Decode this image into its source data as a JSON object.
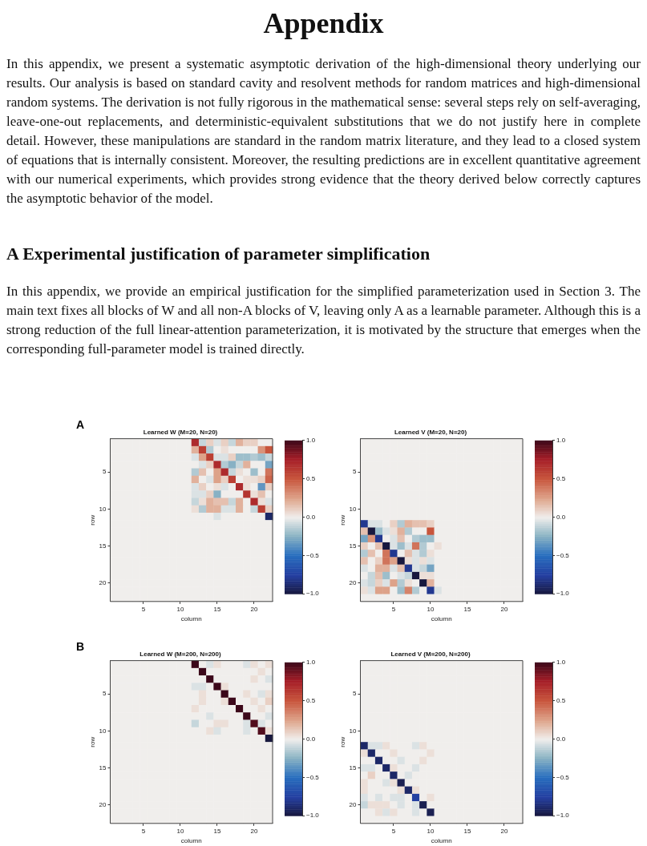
{
  "chart_data": [
    {
      "type": "other",
      "title": "Appendix",
      "subtitle": "A Experimental justification of parameter simplification",
      "annotations": [
        "In this appendix, we present a systematic asymptotic derivation of the high-dimensional theory underlying our results. Our analysis is based on standard cavity and resolvent methods for random matrices and high-dimensional random systems. The derivation is not fully rigorous in the mathematical sense: several steps rely on self-averaging, leave-one-out replacements, and deterministic-equivalent substitutions that we do not justify here in complete detail. However, these manipulations are standard in the random matrix literature, and they lead to a closed system of equations that is internally consistent. Moreover, the resulting predictions are in excellent quantitative agreement with our numerical experiments, which provides strong evidence that the theory derived below correctly captures the asymptotic behavior of the model.",
        "In this appendix, we provide an empirical justification for the simplified parameterization used in Section 3. The main text fixes all blocks of W and all non-A blocks of V, leaving only A as a learnable parameter. Although this is a strong reduction of the full linear-attention parameterization, it is motivated by the structure that emerges when the corresponding full-parameter model is trained directly."
      ]
    },
    {
      "type": "heatmap",
      "title": "Learned W (M=20, N=20)",
      "xlabel": "column",
      "ylabel": "row",
      "annotations": [
        "A"
      ],
      "categories": [
        null,
        null,
        null,
        null,
        "5",
        null,
        null,
        null,
        null,
        "10",
        null,
        null,
        null,
        null,
        "15",
        null,
        null,
        null,
        null,
        "20",
        null,
        null
      ],
      "y_categories": [
        null,
        null,
        null,
        null,
        "5",
        null,
        null,
        null,
        null,
        "10",
        null,
        null,
        null,
        null,
        "15",
        null,
        null,
        null,
        null,
        "20",
        null,
        null
      ],
      "clim": [
        -1,
        1
      ],
      "cticks": [
        {
          "value": 1,
          "label": "1.0"
        },
        {
          "value": 0.5,
          "label": "0.5"
        },
        {
          "value": 0,
          "label": "0.0"
        },
        {
          "value": -0.5,
          "label": "−0.5"
        },
        {
          "value": -1,
          "label": "−1.0"
        }
      ],
      "cells": [
        [
          0,
          0,
          0,
          0,
          0,
          0,
          0,
          0,
          0,
          0,
          0,
          0.7,
          -0.1,
          0.1,
          -0.05,
          0.1,
          -0.1,
          0.2,
          0.1,
          0.1,
          0,
          0
        ],
        [
          0,
          0,
          0,
          0,
          0,
          0,
          0,
          0,
          0,
          0,
          0,
          0.2,
          0.6,
          -0.15,
          0,
          0.05,
          0,
          0,
          0,
          0,
          0.3,
          0.5
        ],
        [
          0,
          0,
          0,
          0,
          0,
          0,
          0,
          0,
          0,
          0,
          0,
          -0.05,
          0.25,
          0.6,
          -0.05,
          -0.05,
          0.1,
          -0.2,
          -0.2,
          -0.15,
          -0.2,
          -0.1
        ],
        [
          0,
          0,
          0,
          0,
          0,
          0,
          0,
          0,
          0,
          0,
          0,
          0,
          -0.05,
          0.1,
          0.7,
          -0.15,
          -0.25,
          -0.1,
          0.2,
          0,
          0,
          -0.3
        ],
        [
          0,
          0,
          0,
          0,
          0,
          0,
          0,
          0,
          0,
          0,
          0,
          -0.15,
          0.15,
          0,
          0.25,
          0.7,
          -0.1,
          0.05,
          0,
          -0.2,
          0,
          0.4
        ],
        [
          0,
          0,
          0,
          0,
          0,
          0,
          0,
          0,
          0,
          0,
          0,
          0.2,
          0,
          -0.05,
          0.25,
          0.1,
          0.6,
          0,
          0.05,
          0.05,
          0.1,
          0.45
        ],
        [
          0,
          0,
          0,
          0,
          0,
          0,
          0,
          0,
          0,
          0,
          0,
          -0.05,
          0.1,
          0,
          0.05,
          -0.05,
          0,
          0.7,
          0.05,
          0,
          -0.35,
          0.1
        ],
        [
          0,
          0,
          0,
          0,
          0,
          0,
          0,
          0,
          0,
          0,
          0,
          -0.05,
          -0.05,
          0.1,
          -0.25,
          0,
          0,
          0,
          0.65,
          0.05,
          0.15,
          0
        ],
        [
          0,
          0,
          0,
          0,
          0,
          0,
          0,
          0,
          0,
          0,
          0,
          -0.1,
          0.05,
          0.2,
          0.15,
          0.15,
          -0.1,
          0.2,
          0,
          0.7,
          0.05,
          -0.05
        ],
        [
          0,
          0,
          0,
          0,
          0,
          0,
          0,
          0,
          0,
          0,
          0,
          0.05,
          -0.15,
          0.2,
          0.2,
          -0.05,
          -0.05,
          0.2,
          0,
          -0.1,
          0.6,
          0.1
        ],
        [
          0,
          0,
          0,
          0,
          0,
          0,
          0,
          0,
          0,
          0,
          0,
          0,
          0,
          0,
          -0.05,
          0,
          0,
          0,
          0,
          0,
          0,
          -0.9
        ],
        [
          0,
          0,
          0,
          0,
          0,
          0,
          0,
          0,
          0,
          0,
          0,
          0,
          0,
          0,
          0,
          0,
          0,
          0,
          0,
          0,
          0,
          0
        ],
        [
          0,
          0,
          0,
          0,
          0,
          0,
          0,
          0,
          0,
          0,
          0,
          0,
          0,
          0,
          0,
          0,
          0,
          0,
          0,
          0,
          0,
          0
        ],
        [
          0,
          0,
          0,
          0,
          0,
          0,
          0,
          0,
          0,
          0,
          0,
          0,
          0,
          0,
          0,
          0,
          0,
          0,
          0,
          0,
          0,
          0
        ],
        [
          0,
          0,
          0,
          0,
          0,
          0,
          0,
          0,
          0,
          0,
          0,
          0,
          0,
          0,
          0,
          0,
          0,
          0,
          0,
          0,
          0,
          0
        ],
        [
          0,
          0,
          0,
          0,
          0,
          0,
          0,
          0,
          0,
          0,
          0,
          0,
          0,
          0,
          0,
          0,
          0,
          0,
          0,
          0,
          0,
          0
        ],
        [
          0,
          0,
          0,
          0,
          0,
          0,
          0,
          0,
          0,
          0,
          0,
          0,
          0,
          0,
          0,
          0,
          0,
          0,
          0,
          0,
          0,
          0
        ],
        [
          0,
          0,
          0,
          0,
          0,
          0,
          0,
          0,
          0,
          0,
          0,
          0,
          0,
          0,
          0,
          0,
          0,
          0,
          0,
          0,
          0,
          0
        ],
        [
          0,
          0,
          0,
          0,
          0,
          0,
          0,
          0,
          0,
          0,
          0,
          0,
          0,
          0,
          0,
          0,
          0,
          0,
          0,
          0,
          0,
          0
        ],
        [
          0,
          0,
          0,
          0,
          0,
          0,
          0,
          0,
          0,
          0,
          0,
          0,
          0,
          0,
          0,
          0,
          0,
          0,
          0,
          0,
          0,
          0
        ],
        [
          0,
          0,
          0,
          0,
          0,
          0,
          0,
          0,
          0,
          0,
          0,
          0,
          0,
          0,
          0,
          0,
          0,
          0,
          0,
          0,
          0,
          0
        ],
        [
          0,
          0,
          0,
          0,
          0,
          0,
          0,
          0,
          0,
          0,
          0,
          0,
          0,
          0,
          0,
          0,
          0,
          0,
          0,
          0,
          0,
          0
        ]
      ]
    },
    {
      "type": "heatmap",
      "title": "Learned V (M=20, N=20)",
      "xlabel": "column",
      "ylabel": "row",
      "categories": [
        null,
        null,
        null,
        null,
        "5",
        null,
        null,
        null,
        null,
        "10",
        null,
        null,
        null,
        null,
        "15",
        null,
        null,
        null,
        null,
        "20",
        null,
        null
      ],
      "y_categories": [
        null,
        null,
        null,
        null,
        "5",
        null,
        null,
        null,
        null,
        "10",
        null,
        null,
        null,
        null,
        "15",
        null,
        null,
        null,
        null,
        "20",
        null,
        null
      ],
      "clim": [
        -1,
        1
      ],
      "cticks": [
        {
          "value": 1,
          "label": "1.0"
        },
        {
          "value": 0.5,
          "label": "0.5"
        },
        {
          "value": 0,
          "label": "0.0"
        },
        {
          "value": -0.5,
          "label": "−0.5"
        },
        {
          "value": -1,
          "label": "−1.0"
        }
      ],
      "cells": [
        [
          0,
          0,
          0,
          0,
          0,
          0,
          0,
          0,
          0,
          0,
          0,
          0,
          0,
          0,
          0,
          0,
          0,
          0,
          0,
          0,
          0,
          0
        ],
        [
          0,
          0,
          0,
          0,
          0,
          0,
          0,
          0,
          0,
          0,
          0,
          0,
          0,
          0,
          0,
          0,
          0,
          0,
          0,
          0,
          0,
          0
        ],
        [
          0,
          0,
          0,
          0,
          0,
          0,
          0,
          0,
          0,
          0,
          0,
          0,
          0,
          0,
          0,
          0,
          0,
          0,
          0,
          0,
          0,
          0
        ],
        [
          0,
          0,
          0,
          0,
          0,
          0,
          0,
          0,
          0,
          0,
          0,
          0,
          0,
          0,
          0,
          0,
          0,
          0,
          0,
          0,
          0,
          0
        ],
        [
          0,
          0,
          0,
          0,
          0,
          0,
          0,
          0,
          0,
          0,
          0,
          0,
          0,
          0,
          0,
          0,
          0,
          0,
          0,
          0,
          0,
          0
        ],
        [
          0,
          0,
          0,
          0,
          0,
          0,
          0,
          0,
          0,
          0,
          0,
          0,
          0,
          0,
          0,
          0,
          0,
          0,
          0,
          0,
          0,
          0
        ],
        [
          0,
          0,
          0,
          0,
          0,
          0,
          0,
          0,
          0,
          0,
          0,
          0,
          0,
          0,
          0,
          0,
          0,
          0,
          0,
          0,
          0,
          0
        ],
        [
          0,
          0,
          0,
          0,
          0,
          0,
          0,
          0,
          0,
          0,
          0,
          0,
          0,
          0,
          0,
          0,
          0,
          0,
          0,
          0,
          0,
          0
        ],
        [
          0,
          0,
          0,
          0,
          0,
          0,
          0,
          0,
          0,
          0,
          0,
          0,
          0,
          0,
          0,
          0,
          0,
          0,
          0,
          0,
          0,
          0
        ],
        [
          0,
          0,
          0,
          0,
          0,
          0,
          0,
          0,
          0,
          0,
          0,
          0,
          0,
          0,
          0,
          0,
          0,
          0,
          0,
          0,
          0,
          0
        ],
        [
          0,
          0,
          0,
          0,
          0,
          0,
          0,
          0,
          0,
          0,
          0,
          0,
          0,
          0,
          0,
          0,
          0,
          0,
          0,
          0,
          0,
          0
        ],
        [
          -0.8,
          -0.05,
          -0.05,
          0,
          0.1,
          -0.15,
          0.2,
          0.15,
          0.15,
          0.1,
          0,
          0,
          0,
          0,
          0,
          0,
          0,
          0,
          0,
          0,
          0,
          0
        ],
        [
          0.15,
          -1,
          -0.2,
          -0.05,
          0.05,
          0.2,
          -0.15,
          0,
          0,
          0.5,
          0,
          0,
          0,
          0,
          0,
          0,
          0,
          0,
          0,
          0,
          0,
          0
        ],
        [
          -0.3,
          0.3,
          -0.8,
          0,
          -0.05,
          0.15,
          0,
          -0.15,
          -0.2,
          -0.2,
          0,
          0,
          0,
          0,
          0,
          0,
          0,
          0,
          0,
          0,
          0,
          0
        ],
        [
          0.1,
          0,
          0.15,
          -1,
          -0.05,
          -0.2,
          -0.05,
          0.4,
          -0.15,
          0,
          0.05,
          0,
          0,
          0,
          0,
          0,
          0,
          0,
          0,
          0,
          0,
          0
        ],
        [
          -0.15,
          0.15,
          0,
          0.4,
          -0.8,
          0,
          0.15,
          -0.05,
          -0.15,
          0.05,
          0,
          0,
          0,
          0,
          0,
          0,
          0,
          0,
          0,
          0,
          0,
          0
        ],
        [
          0.15,
          0,
          0.1,
          0.4,
          0.25,
          -1,
          0.05,
          -0.05,
          0.05,
          -0.05,
          0,
          0,
          0,
          0,
          0,
          0,
          0,
          0,
          0,
          0,
          0,
          0
        ],
        [
          -0.05,
          0,
          0.2,
          0.2,
          -0.05,
          0.15,
          -0.8,
          -0.05,
          -0.1,
          -0.3,
          0,
          0,
          0,
          0,
          0,
          0,
          0,
          0,
          0,
          0,
          0,
          0
        ],
        [
          0,
          -0.1,
          0.15,
          -0.2,
          0,
          -0.05,
          -0.1,
          -1,
          0.05,
          0.05,
          0,
          0,
          0,
          0,
          0,
          0,
          0,
          0,
          0,
          0,
          0,
          0
        ],
        [
          -0.05,
          -0.1,
          0.1,
          -0.05,
          0.25,
          -0.15,
          0.05,
          0,
          -1,
          0.2,
          0,
          0,
          0,
          0,
          0,
          0,
          0,
          0,
          0,
          0,
          0,
          0
        ],
        [
          0.05,
          -0.05,
          0.25,
          0.25,
          0,
          -0.2,
          0.35,
          -0.15,
          0,
          -0.8,
          -0.05,
          0,
          0,
          0,
          0,
          0,
          0,
          0,
          0,
          0,
          0,
          0
        ],
        [
          0,
          0,
          0,
          0,
          0,
          0,
          0,
          0,
          0,
          0,
          0,
          0,
          0,
          0,
          0,
          0,
          0,
          0,
          0,
          0,
          0,
          0
        ]
      ]
    },
    {
      "type": "heatmap",
      "title": "Learned W (M=200, N=200)",
      "xlabel": "column",
      "ylabel": "row",
      "annotations": [
        "B"
      ],
      "categories": [
        null,
        null,
        null,
        null,
        "5",
        null,
        null,
        null,
        null,
        "10",
        null,
        null,
        null,
        null,
        "15",
        null,
        null,
        null,
        null,
        "20",
        null,
        null
      ],
      "y_categories": [
        null,
        null,
        null,
        null,
        "5",
        null,
        null,
        null,
        null,
        "10",
        null,
        null,
        null,
        null,
        "15",
        null,
        null,
        null,
        null,
        "20",
        null,
        null
      ],
      "clim": [
        -1,
        1
      ],
      "cticks": [
        {
          "value": 1,
          "label": "1.0"
        },
        {
          "value": 0.5,
          "label": "0.5"
        },
        {
          "value": 0,
          "label": "0.0"
        },
        {
          "value": -0.5,
          "label": "−0.5"
        },
        {
          "value": -1,
          "label": "−1.0"
        }
      ],
      "cells": [
        [
          0,
          0,
          0,
          0,
          0,
          0,
          0,
          0,
          0,
          0,
          0,
          1,
          0,
          -0.05,
          0.05,
          0,
          0,
          0,
          -0.05,
          0.05,
          0,
          0.05
        ],
        [
          0,
          0,
          0,
          0,
          0,
          0,
          0,
          0,
          0,
          0,
          0,
          0,
          1,
          0,
          0,
          0,
          0,
          0,
          0,
          0,
          0.05,
          0
        ],
        [
          0,
          0,
          0,
          0,
          0,
          0,
          0,
          0,
          0,
          0,
          0,
          0,
          0,
          1,
          0,
          0,
          0,
          0,
          0,
          0.05,
          0,
          -0.05
        ],
        [
          0,
          0,
          0,
          0,
          0,
          0,
          0,
          0,
          0,
          0,
          0,
          -0.05,
          -0.05,
          0,
          1,
          0.05,
          0,
          0,
          0,
          0,
          0,
          0
        ],
        [
          0,
          0,
          0,
          0,
          0,
          0,
          0,
          0,
          0,
          0,
          0,
          0,
          0.05,
          0,
          0,
          1,
          0,
          0,
          0.05,
          0,
          -0.05,
          0.05
        ],
        [
          0,
          0,
          0,
          0,
          0,
          0,
          0,
          0,
          0,
          0,
          0,
          0,
          0.05,
          0,
          0,
          0.05,
          1,
          0,
          0,
          0.05,
          0,
          0.1
        ],
        [
          0,
          0,
          0,
          0,
          0,
          0,
          0,
          0,
          0,
          0,
          0,
          0.05,
          0,
          0,
          0,
          0,
          0,
          1,
          0,
          0,
          0.05,
          0
        ],
        [
          0,
          0,
          0,
          0,
          0,
          0,
          0,
          0,
          0,
          0,
          0,
          0,
          0,
          -0.05,
          0,
          0,
          0,
          0,
          1,
          0,
          0,
          -0.05
        ],
        [
          0,
          0,
          0,
          0,
          0,
          0,
          0,
          0,
          0,
          0,
          0,
          -0.1,
          0,
          0,
          0.05,
          0.05,
          0,
          0,
          -0.05,
          0.95,
          -0.05,
          0
        ],
        [
          0,
          0,
          0,
          0,
          0,
          0,
          0,
          0,
          0,
          0,
          0,
          0,
          0,
          0.05,
          -0.05,
          0,
          0,
          0,
          -0.05,
          0,
          0.95,
          0.05
        ],
        [
          0,
          0,
          0,
          0,
          0,
          0,
          0,
          0,
          0,
          0,
          0,
          0,
          0,
          0,
          0,
          0,
          0,
          0,
          0,
          0,
          0,
          -1
        ],
        [
          0,
          0,
          0,
          0,
          0,
          0,
          0,
          0,
          0,
          0,
          0,
          0,
          0,
          0,
          0,
          0,
          0,
          0,
          0,
          0,
          0,
          0
        ],
        [
          0,
          0,
          0,
          0,
          0,
          0,
          0,
          0,
          0,
          0,
          0,
          0,
          0,
          0,
          0,
          0,
          0,
          0,
          0,
          0,
          0,
          0
        ],
        [
          0,
          0,
          0,
          0,
          0,
          0,
          0,
          0,
          0,
          0,
          0,
          0,
          0,
          0,
          0,
          0,
          0,
          0,
          0,
          0,
          0,
          0
        ],
        [
          0,
          0,
          0,
          0,
          0,
          0,
          0,
          0,
          0,
          0,
          0,
          0,
          0,
          0,
          0,
          0,
          0,
          0,
          0,
          0,
          0,
          0
        ],
        [
          0,
          0,
          0,
          0,
          0,
          0,
          0,
          0,
          0,
          0,
          0,
          0,
          0,
          0,
          0,
          0,
          0,
          0,
          0,
          0,
          0,
          0
        ],
        [
          0,
          0,
          0,
          0,
          0,
          0,
          0,
          0,
          0,
          0,
          0,
          0,
          0,
          0,
          0,
          0,
          0,
          0,
          0,
          0,
          0,
          0
        ],
        [
          0,
          0,
          0,
          0,
          0,
          0,
          0,
          0,
          0,
          0,
          0,
          0,
          0,
          0,
          0,
          0,
          0,
          0,
          0,
          0,
          0,
          0
        ],
        [
          0,
          0,
          0,
          0,
          0,
          0,
          0,
          0,
          0,
          0,
          0,
          0,
          0,
          0,
          0,
          0,
          0,
          0,
          0,
          0,
          0,
          0
        ],
        [
          0,
          0,
          0,
          0,
          0,
          0,
          0,
          0,
          0,
          0,
          0,
          0,
          0,
          0,
          0,
          0,
          0,
          0,
          0,
          0,
          0,
          0
        ],
        [
          0,
          0,
          0,
          0,
          0,
          0,
          0,
          0,
          0,
          0,
          0,
          0,
          0,
          0,
          0,
          0,
          0,
          0,
          0,
          0,
          0,
          0
        ],
        [
          0,
          0,
          0,
          0,
          0,
          0,
          0,
          0,
          0,
          0,
          0,
          0,
          0,
          0,
          0,
          0,
          0,
          0,
          0,
          0,
          0,
          0
        ]
      ]
    },
    {
      "type": "heatmap",
      "title": "Learned V (M=200, N=200)",
      "xlabel": "column",
      "ylabel": "row",
      "categories": [
        null,
        null,
        null,
        null,
        "5",
        null,
        null,
        null,
        null,
        "10",
        null,
        null,
        null,
        null,
        "15",
        null,
        null,
        null,
        null,
        "20",
        null,
        null
      ],
      "y_categories": [
        null,
        null,
        null,
        null,
        "5",
        null,
        null,
        null,
        null,
        "10",
        null,
        null,
        null,
        null,
        "15",
        null,
        null,
        null,
        null,
        "20",
        null,
        null
      ],
      "clim": [
        -1,
        1
      ],
      "cticks": [
        {
          "value": 1,
          "label": "1.0"
        },
        {
          "value": 0.5,
          "label": "0.5"
        },
        {
          "value": 0,
          "label": "0.0"
        },
        {
          "value": -0.5,
          "label": "−0.5"
        },
        {
          "value": -1,
          "label": "−1.0"
        }
      ],
      "cells": [
        [
          0,
          0,
          0,
          0,
          0,
          0,
          0,
          0,
          0,
          0,
          0,
          0,
          0,
          0,
          0,
          0,
          0,
          0,
          0,
          0,
          0,
          0
        ],
        [
          0,
          0,
          0,
          0,
          0,
          0,
          0,
          0,
          0,
          0,
          0,
          0,
          0,
          0,
          0,
          0,
          0,
          0,
          0,
          0,
          0,
          0
        ],
        [
          0,
          0,
          0,
          0,
          0,
          0,
          0,
          0,
          0,
          0,
          0,
          0,
          0,
          0,
          0,
          0,
          0,
          0,
          0,
          0,
          0,
          0
        ],
        [
          0,
          0,
          0,
          0,
          0,
          0,
          0,
          0,
          0,
          0,
          0,
          0,
          0,
          0,
          0,
          0,
          0,
          0,
          0,
          0,
          0,
          0
        ],
        [
          0,
          0,
          0,
          0,
          0,
          0,
          0,
          0,
          0,
          0,
          0,
          0,
          0,
          0,
          0,
          0,
          0,
          0,
          0,
          0,
          0,
          0
        ],
        [
          0,
          0,
          0,
          0,
          0,
          0,
          0,
          0,
          0,
          0,
          0,
          0,
          0,
          0,
          0,
          0,
          0,
          0,
          0,
          0,
          0,
          0
        ],
        [
          0,
          0,
          0,
          0,
          0,
          0,
          0,
          0,
          0,
          0,
          0,
          0,
          0,
          0,
          0,
          0,
          0,
          0,
          0,
          0,
          0,
          0
        ],
        [
          0,
          0,
          0,
          0,
          0,
          0,
          0,
          0,
          0,
          0,
          0,
          0,
          0,
          0,
          0,
          0,
          0,
          0,
          0,
          0,
          0,
          0
        ],
        [
          0,
          0,
          0,
          0,
          0,
          0,
          0,
          0,
          0,
          0,
          0,
          0,
          0,
          0,
          0,
          0,
          0,
          0,
          0,
          0,
          0,
          0
        ],
        [
          0,
          0,
          0,
          0,
          0,
          0,
          0,
          0,
          0,
          0,
          0,
          0,
          0,
          0,
          0,
          0,
          0,
          0,
          0,
          0,
          0,
          0
        ],
        [
          0,
          0,
          0,
          0,
          0,
          0,
          0,
          0,
          0,
          0,
          0,
          0,
          0,
          0,
          0,
          0,
          0,
          0,
          0,
          0,
          0,
          0
        ],
        [
          -0.9,
          -0.05,
          -0.05,
          0.05,
          0,
          0,
          0,
          -0.05,
          0.05,
          0,
          0,
          0,
          0,
          0,
          0,
          0,
          0,
          0,
          0,
          0,
          0,
          0
        ],
        [
          0.05,
          -0.9,
          0,
          0,
          0.05,
          0,
          0,
          0,
          0,
          0.05,
          0,
          0,
          0,
          0,
          0,
          0,
          0,
          0,
          0,
          0,
          0,
          0
        ],
        [
          0,
          0,
          -0.9,
          0,
          0,
          -0.05,
          0,
          0,
          0.05,
          0,
          0,
          0,
          0,
          0,
          0,
          0,
          0,
          0,
          0,
          0,
          0,
          0
        ],
        [
          -0.05,
          -0.05,
          0,
          -0.9,
          0.05,
          0,
          0,
          -0.05,
          0,
          0,
          0,
          0,
          0,
          0,
          0,
          0,
          0,
          0,
          0,
          0,
          0,
          0
        ],
        [
          0,
          0.1,
          0,
          0,
          -0.9,
          0,
          -0.05,
          0,
          0,
          0,
          0,
          0,
          0,
          0,
          0,
          0,
          0,
          0,
          0,
          0,
          0,
          0
        ],
        [
          0.05,
          0,
          0,
          -0.05,
          0.05,
          -0.95,
          0,
          0,
          0,
          0,
          0,
          0,
          0,
          0,
          0,
          0,
          0,
          0,
          0,
          0,
          0,
          0
        ],
        [
          0.05,
          0,
          0,
          0,
          0,
          0.05,
          -0.9,
          0.05,
          0,
          0,
          0,
          0,
          0,
          0,
          0,
          0,
          0,
          0,
          0,
          0,
          0,
          0
        ],
        [
          -0.05,
          0,
          -0.05,
          0,
          -0.05,
          -0.05,
          0,
          -0.75,
          0,
          0.05,
          0,
          0,
          0,
          0,
          0,
          0,
          0,
          0,
          0,
          0,
          0,
          0
        ],
        [
          -0.1,
          0.05,
          0.05,
          0.05,
          0,
          -0.05,
          0,
          -0.05,
          -0.95,
          0,
          0,
          0,
          0,
          0,
          0,
          0,
          0,
          0,
          0,
          0,
          0,
          0
        ],
        [
          0,
          0,
          0.05,
          -0.05,
          0.05,
          0,
          0,
          -0.05,
          0,
          -0.95,
          0,
          0,
          0,
          0,
          0,
          0,
          0,
          0,
          0,
          0,
          0,
          0
        ],
        [
          0,
          0,
          0,
          0,
          0,
          0,
          0,
          0,
          0,
          0,
          0,
          0,
          0,
          0,
          0,
          0,
          0,
          0,
          0,
          0,
          0,
          0
        ]
      ]
    }
  ]
}
